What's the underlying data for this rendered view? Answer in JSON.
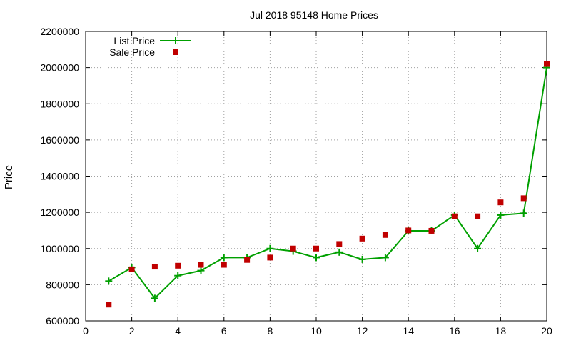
{
  "chart_data": {
    "type": "line",
    "title": "Jul 2018 95148 Home Prices",
    "xlabel": "",
    "ylabel": "Price",
    "xlim": [
      0,
      20
    ],
    "ylim": [
      600000,
      2200000
    ],
    "xticks": [
      0,
      2,
      4,
      6,
      8,
      10,
      12,
      14,
      16,
      18,
      20
    ],
    "yticks": [
      600000,
      800000,
      1000000,
      1200000,
      1400000,
      1600000,
      1800000,
      2000000,
      2200000
    ],
    "grid": true,
    "legend_position": "top-left",
    "series": [
      {
        "name": "List Price",
        "style": "line-with-plus-markers",
        "color": "#00a000",
        "x": [
          1,
          2,
          3,
          4,
          5,
          6,
          7,
          8,
          9,
          10,
          11,
          12,
          13,
          14,
          15,
          16,
          17,
          18,
          19,
          20
        ],
        "y": [
          820000,
          895000,
          725000,
          850000,
          878000,
          950000,
          950000,
          1000000,
          985000,
          950000,
          980000,
          940000,
          950000,
          1098000,
          1098000,
          1185000,
          1000000,
          1185000,
          1195000,
          2000000
        ]
      },
      {
        "name": "Sale Price",
        "style": "square-markers",
        "color": "#c00000",
        "x": [
          1,
          2,
          3,
          4,
          5,
          6,
          7,
          8,
          9,
          10,
          11,
          12,
          13,
          14,
          15,
          16,
          17,
          18,
          19,
          20
        ],
        "y": [
          690000,
          885000,
          900000,
          905000,
          910000,
          910000,
          937000,
          950000,
          1000000,
          1000000,
          1025000,
          1055000,
          1075000,
          1100000,
          1098000,
          1178000,
          1178000,
          1255000,
          1278000,
          2020000
        ]
      }
    ]
  }
}
